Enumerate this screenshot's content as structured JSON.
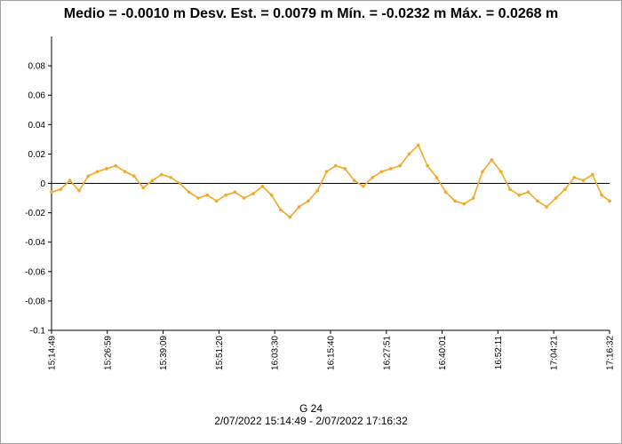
{
  "chart_data": {
    "type": "line",
    "title": "Medio = -0.0010 m  Desv. Est. = 0.0079 m  Mín. = -0.0232 m  Máx. = 0.0268 m",
    "ylim": [
      -0.1,
      0.1
    ],
    "y_ticks": [
      "0.08",
      "0.06",
      "0.04",
      "0.02",
      "0",
      "-0.02",
      "-0.04",
      "-0.06",
      "-0.08",
      "-0.1"
    ],
    "y_tick_values": [
      0.08,
      0.06,
      0.04,
      0.02,
      0,
      -0.02,
      -0.04,
      -0.06,
      -0.08,
      -0.1
    ],
    "x_ticks": [
      "15:14:49",
      "15:26:59",
      "15:39:09",
      "15:51:20",
      "16:03:30",
      "16:15:40",
      "16:27:51",
      "16:40:01",
      "16:52:11",
      "17:04:21",
      "17:16:32"
    ],
    "xlim": [
      "15:14:49",
      "17:16:32"
    ],
    "grid": false,
    "zero_line": true,
    "series": [
      {
        "color": "#f5a623",
        "x": [
          "15:14:49",
          "15:16:49",
          "15:18:49",
          "15:20:49",
          "15:22:49",
          "15:24:49",
          "15:26:49",
          "15:28:49",
          "15:30:49",
          "15:32:49",
          "15:34:49",
          "15:36:49",
          "15:38:49",
          "15:40:49",
          "15:42:49",
          "15:44:49",
          "15:46:49",
          "15:48:49",
          "15:50:49",
          "15:52:49",
          "15:54:49",
          "15:56:49",
          "15:58:49",
          "16:00:49",
          "16:02:49",
          "16:04:49",
          "16:06:49",
          "16:08:49",
          "16:10:49",
          "16:12:49",
          "16:14:49",
          "16:16:49",
          "16:18:49",
          "16:20:49",
          "16:22:49",
          "16:24:49",
          "16:26:49",
          "16:28:49",
          "16:30:49",
          "16:32:49",
          "16:34:49",
          "16:36:49",
          "16:38:49",
          "16:40:49",
          "16:42:49",
          "16:44:49",
          "16:46:49",
          "16:48:49",
          "16:50:49",
          "16:52:49",
          "16:54:49",
          "16:56:49",
          "16:58:49",
          "17:00:49",
          "17:02:49",
          "17:04:49",
          "17:06:49",
          "17:08:49",
          "17:10:49",
          "17:12:49",
          "17:14:49",
          "17:16:32"
        ],
        "values": [
          -0.006,
          -0.004,
          0.002,
          -0.005,
          0.005,
          0.008,
          0.01,
          0.012,
          0.008,
          0.005,
          -0.003,
          0.002,
          0.006,
          0.004,
          0.0,
          -0.006,
          -0.01,
          -0.008,
          -0.012,
          -0.008,
          -0.006,
          -0.01,
          -0.007,
          -0.002,
          -0.008,
          -0.018,
          -0.023,
          -0.016,
          -0.012,
          -0.005,
          0.008,
          0.012,
          0.01,
          0.002,
          -0.002,
          0.004,
          0.008,
          0.01,
          0.012,
          0.02,
          0.026,
          0.012,
          0.004,
          -0.006,
          -0.012,
          -0.014,
          -0.01,
          0.008,
          0.016,
          0.008,
          -0.004,
          -0.008,
          -0.006,
          -0.012,
          -0.016,
          -0.01,
          -0.004,
          0.004,
          0.002,
          0.006,
          -0.008,
          -0.012
        ]
      }
    ]
  },
  "caption": {
    "line1": "G 24",
    "line2": "2/07/2022 15:14:49 - 2/07/2022 17:16:32"
  }
}
